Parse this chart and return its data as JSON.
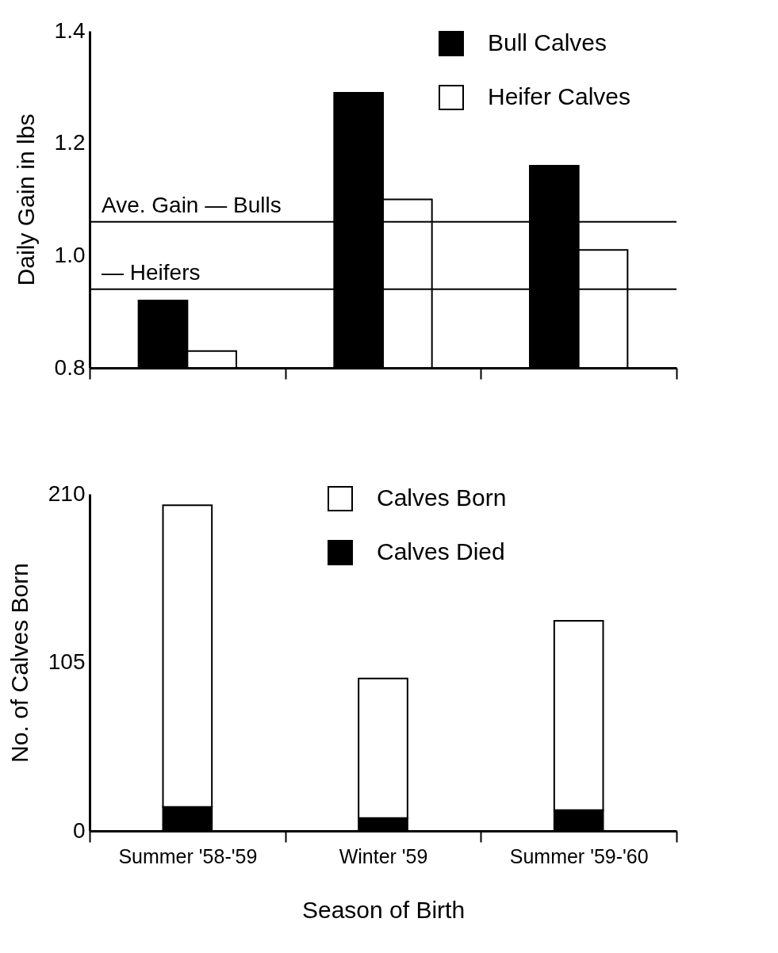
{
  "chart_data": [
    {
      "type": "bar",
      "categories": [
        null,
        null,
        null
      ],
      "series": [
        {
          "name": "Bull Calves",
          "color": "#000000",
          "values": [
            0.92,
            1.29,
            1.16
          ]
        },
        {
          "name": "Heifer Calves",
          "color": "#ffffff",
          "values": [
            0.83,
            1.1,
            1.01
          ]
        }
      ],
      "ylabel": "Daily Gain in lbs",
      "ylim": [
        0.8,
        1.4
      ],
      "yticks": [
        0.8,
        {
          "value": 1,
          "label": "1.0"
        },
        1.2,
        1.4
      ],
      "ref_lines": [
        {
          "axis": "y",
          "value": 1.06,
          "label": "Ave. Gain — Bulls"
        },
        {
          "axis": "y",
          "value": 0.94,
          "label": "— Heifers"
        }
      ],
      "legend": "top right",
      "grid": false
    },
    {
      "type": "bar",
      "categories": [
        "Summer '58-'59",
        "Winter '59",
        "Summer '59-'60"
      ],
      "stacked": true,
      "series": [
        {
          "name": "Calves Died",
          "color": "#000000",
          "values": [
            15,
            8,
            13
          ]
        },
        {
          "name": "Calves Born",
          "color": "#ffffff",
          "values": [
            188,
            87,
            118
          ]
        }
      ],
      "ylabel": "No. of Calves Born",
      "xlabel": "Season of Birth",
      "ylim": [
        0,
        210
      ],
      "yticks": [
        0,
        105,
        210
      ],
      "legend": "top",
      "grid": false
    }
  ]
}
